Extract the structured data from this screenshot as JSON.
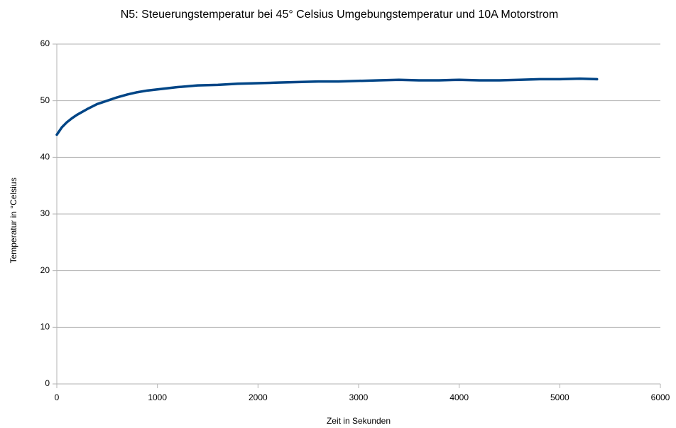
{
  "chart_data": {
    "type": "line",
    "title": "N5: Steuerungstemperatur bei 45° Celsius Umgebungstemperatur und 10A Motorstrom",
    "x_label": "Zeit in Sekunden",
    "y_label": "Temperatur in °Celsius",
    "x": [
      0,
      50,
      100,
      150,
      200,
      300,
      400,
      500,
      600,
      700,
      800,
      900,
      1000,
      1200,
      1400,
      1600,
      1800,
      2000,
      2200,
      2400,
      2600,
      2800,
      3000,
      3200,
      3400,
      3600,
      3800,
      4000,
      4200,
      4400,
      4600,
      4800,
      5000,
      5200,
      5370
    ],
    "series": [
      {
        "name": "Temperatur",
        "color": "#004586",
        "values": [
          44.0,
          45.3,
          46.2,
          46.9,
          47.5,
          48.5,
          49.4,
          50.0,
          50.6,
          51.1,
          51.5,
          51.8,
          52.0,
          52.4,
          52.7,
          52.8,
          53.0,
          53.1,
          53.2,
          53.3,
          53.4,
          53.4,
          53.5,
          53.6,
          53.7,
          53.6,
          53.6,
          53.7,
          53.6,
          53.6,
          53.7,
          53.8,
          53.8,
          53.9,
          53.8
        ]
      }
    ],
    "xlim": [
      0,
      6000
    ],
    "xticks": [
      0,
      1000,
      2000,
      3000,
      4000,
      5000,
      6000
    ],
    "ylim": [
      0,
      60
    ],
    "yticks": [
      0,
      10,
      20,
      30,
      40,
      50,
      60
    ],
    "grid": true
  }
}
